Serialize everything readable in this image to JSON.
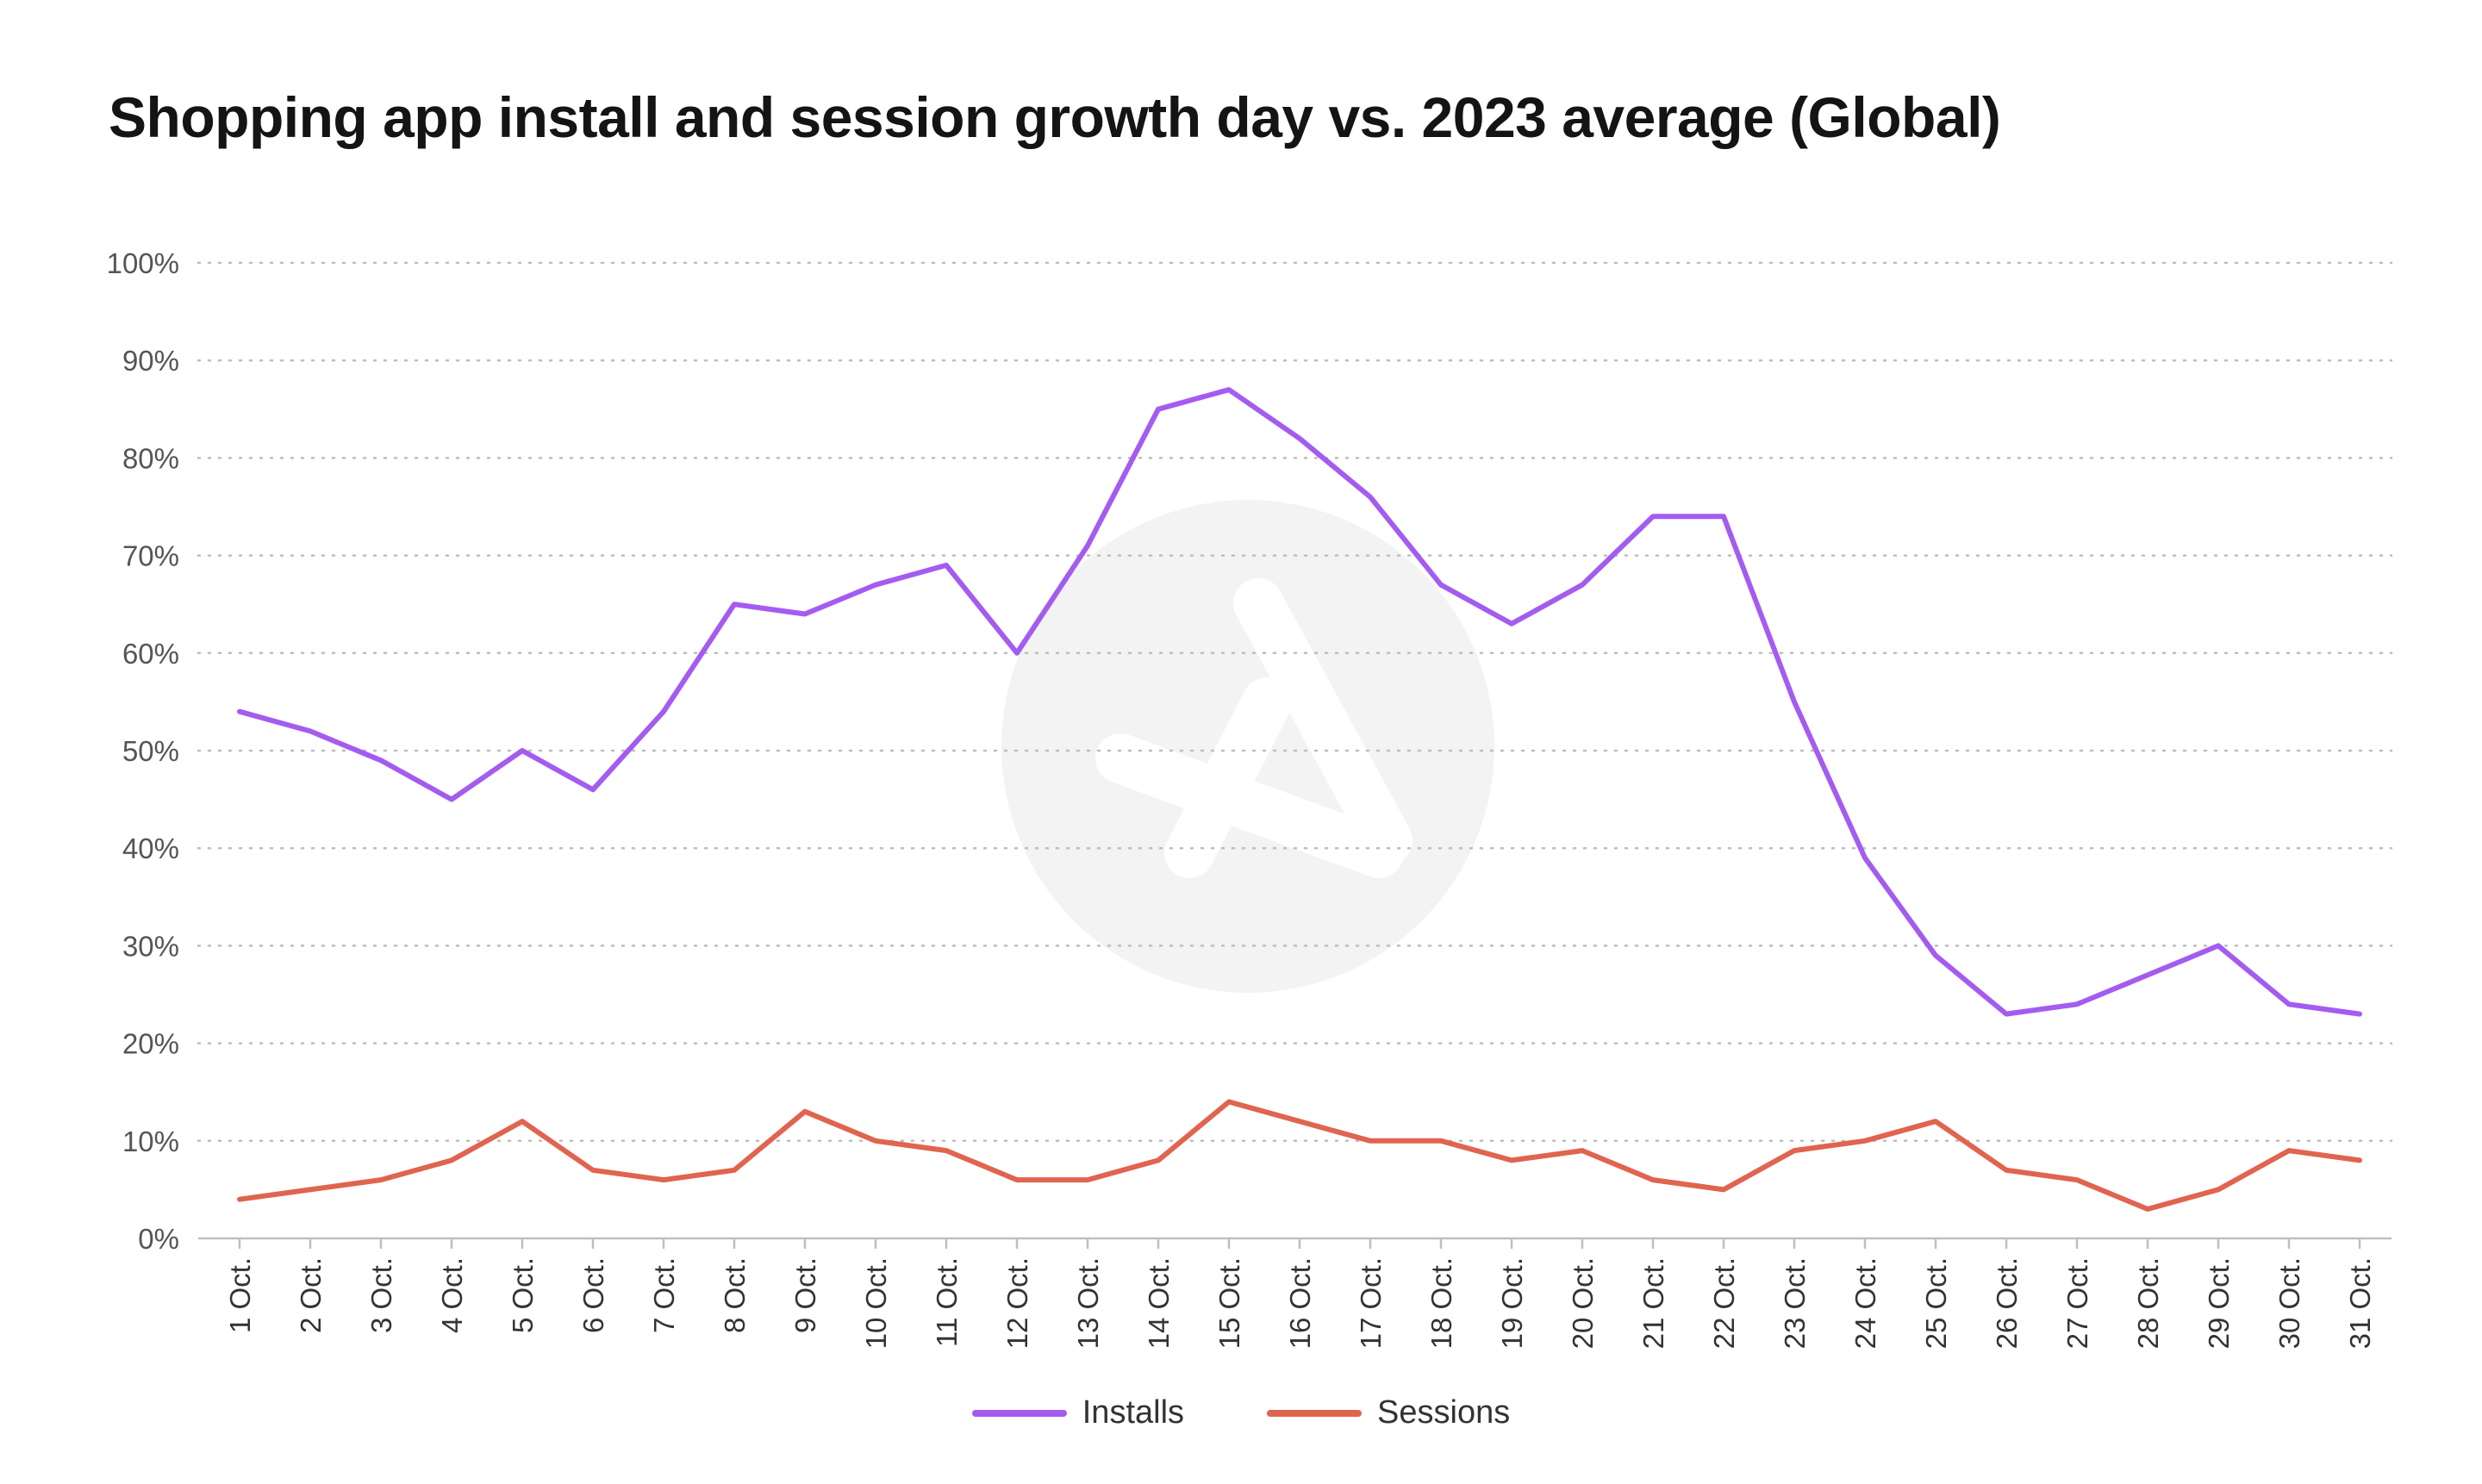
{
  "chart_data": {
    "type": "line",
    "title": "Shopping app install and session growth day vs. 2023 average (Global)",
    "xlabel": "",
    "ylabel": "",
    "ylim": [
      0,
      100
    ],
    "y_ticks": [
      "0%",
      "10%",
      "20%",
      "30%",
      "40%",
      "50%",
      "60%",
      "70%",
      "80%",
      "90%",
      "100%"
    ],
    "grid": "horizontal-dotted",
    "legend_position": "bottom-center",
    "categories": [
      "1 Oct.",
      "2 Oct.",
      "3 Oct.",
      "4 Oct.",
      "5 Oct.",
      "6 Oct.",
      "7 Oct.",
      "8 Oct.",
      "9 Oct.",
      "10 Oct.",
      "11 Oct.",
      "12 Oct.",
      "13 Oct.",
      "14 Oct.",
      "15 Oct.",
      "16 Oct.",
      "17 Oct.",
      "18 Oct.",
      "19 Oct.",
      "20 Oct.",
      "21 Oct.",
      "22 Oct.",
      "23 Oct.",
      "24 Oct.",
      "25 Oct.",
      "26 Oct.",
      "27 Oct.",
      "28 Oct.",
      "29 Oct.",
      "30 Oct.",
      "31 Oct."
    ],
    "series": [
      {
        "name": "Installs",
        "color": "#a45cf0",
        "values": [
          54,
          52,
          49,
          45,
          50,
          46,
          54,
          65,
          64,
          67,
          69,
          60,
          71,
          85,
          87,
          82,
          76,
          67,
          63,
          67,
          74,
          74,
          55,
          39,
          29,
          23,
          24,
          27,
          30,
          24,
          23
        ]
      },
      {
        "name": "Sessions",
        "color": "#e0644f",
        "values": [
          4,
          5,
          6,
          8,
          12,
          7,
          6,
          7,
          13,
          10,
          9,
          6,
          6,
          8,
          14,
          12,
          10,
          10,
          8,
          9,
          6,
          5,
          9,
          10,
          12,
          7,
          6,
          3,
          5,
          9,
          8
        ]
      }
    ]
  },
  "watermark": {
    "icon": "appsflyer-logo-icon"
  }
}
